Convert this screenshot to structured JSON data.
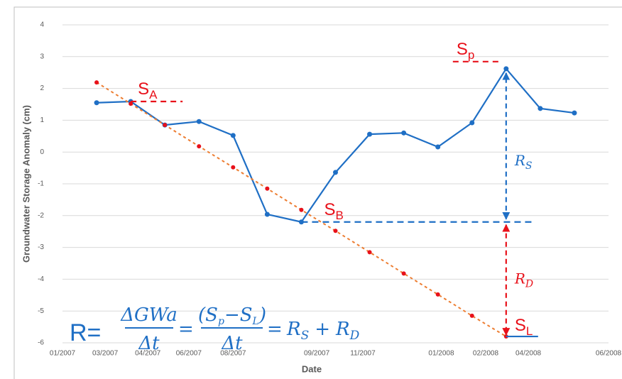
{
  "chart_data": {
    "type": "line",
    "x": [
      1,
      2,
      3,
      4,
      5,
      6,
      7,
      8,
      9,
      10,
      11,
      12,
      13,
      14,
      15
    ],
    "xlim": [
      0,
      16
    ],
    "xticks": [
      {
        "value": 0,
        "label": "01/2007"
      },
      {
        "value": 1.25,
        "label": "03/2007"
      },
      {
        "value": 2.5,
        "label": "04/2007"
      },
      {
        "value": 3.7,
        "label": "06/2007"
      },
      {
        "value": 5,
        "label": "08/2007"
      },
      {
        "value": 7.45,
        "label": "09/2007"
      },
      {
        "value": 8.8,
        "label": "11/2007"
      },
      {
        "value": 11.1,
        "label": "01/2008"
      },
      {
        "value": 12.4,
        "label": "02/2008"
      },
      {
        "value": 13.65,
        "label": "04/2008"
      },
      {
        "value": 16,
        "label": "06/2008"
      }
    ],
    "ylim": [
      -6,
      4
    ],
    "yticks": [
      -6,
      -5,
      -4,
      -3,
      -2,
      -1,
      0,
      1,
      2,
      3,
      4
    ],
    "grid": true,
    "xlabel": "Date",
    "ylabel": "Groundwater Storage Anomaly  (cm)",
    "series": [
      {
        "color": "#1f6fc5",
        "dash": "solid",
        "marker_color": "#1f6fc5",
        "values": [
          1.55,
          1.59,
          0.85,
          0.96,
          0.52,
          -1.96,
          -2.2,
          -0.64,
          0.56,
          0.6,
          0.16,
          0.92,
          2.62,
          1.37,
          1.23
        ]
      },
      {
        "color": "#ed7d31",
        "dash": "dotted",
        "marker_color": "#e8111a",
        "values": [
          2.19,
          1.52,
          0.85,
          0.18,
          -0.48,
          -1.15,
          -1.82,
          -2.48,
          -3.15,
          -3.82,
          -4.48,
          -5.15,
          -5.8,
          null,
          null
        ]
      }
    ]
  },
  "annotations": {
    "points": [
      {
        "main": "S",
        "sub": "A"
      },
      {
        "main": "S",
        "sub": "B"
      },
      {
        "main": "S",
        "sub": "p"
      },
      {
        "main": "S",
        "sub": "L"
      }
    ],
    "rates": [
      {
        "main": "R",
        "sub": "S"
      },
      {
        "main": "R",
        "sub": "D"
      }
    ],
    "formula": {
      "lead": "R=",
      "num1": "ΔGWa",
      "den1": "Δt",
      "eq1": "=",
      "num2": [
        "(S",
        "p",
        "−S",
        "L",
        ")"
      ],
      "den2": "Δt",
      "eq2": "=",
      "rhs": [
        "R",
        "S",
        "+",
        "R",
        "D"
      ]
    }
  }
}
